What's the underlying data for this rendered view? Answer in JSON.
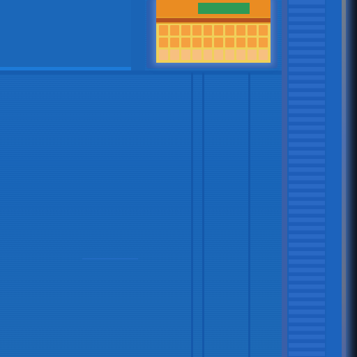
{
  "screen": {
    "background_color": "#1664b9",
    "accent_color": "#e49a2a"
  },
  "thumbnail": {
    "icon": "tile-thumbnail",
    "header_color": "#ea8c22",
    "highlight_color": "#2f9a55",
    "grid_color": "#f5a040"
  },
  "scrollbar": {
    "icon": "vertical-scrollbar"
  }
}
